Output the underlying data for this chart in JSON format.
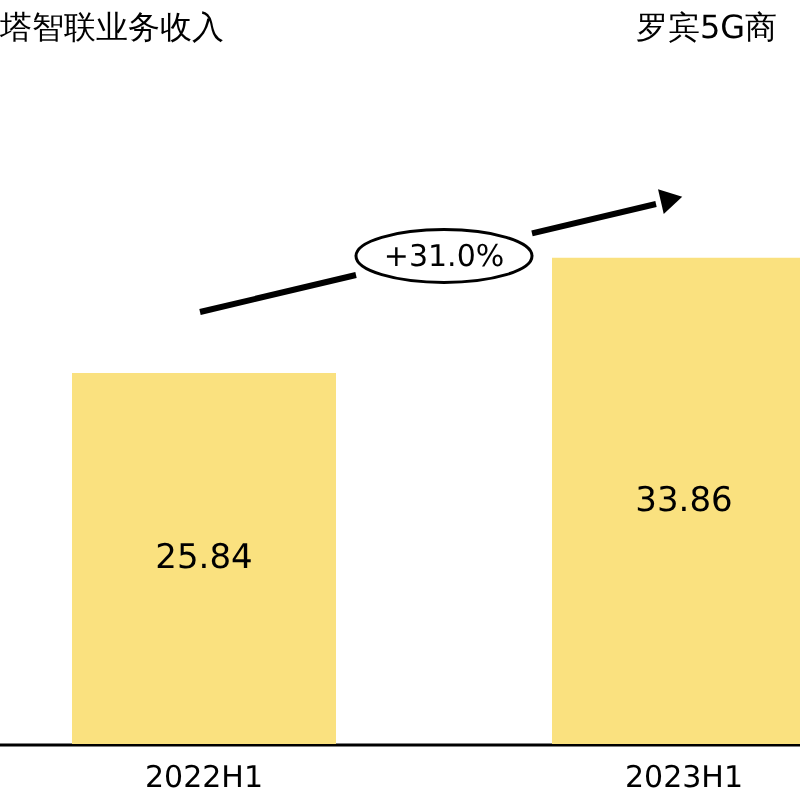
{
  "chart_data": {
    "type": "bar",
    "title": "塔智联业务收入",
    "categories": [
      "2022H1",
      "2023H1"
    ],
    "values": [
      25.84,
      33.86
    ],
    "color": "#fae17f",
    "data_labels": true,
    "annotations": [
      "+31.0%",
      "罗宾5G商"
    ]
  }
}
